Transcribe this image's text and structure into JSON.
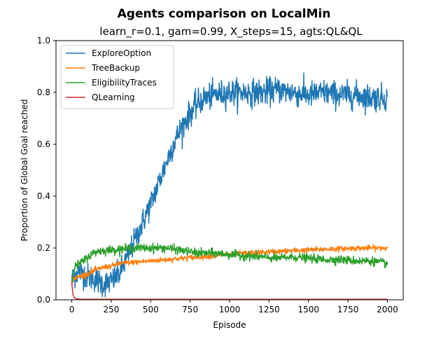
{
  "chart_data": {
    "type": "line",
    "title": "Agents comparison on LocalMin",
    "subtitle": "learn_r=0.1, gam=0.99, X_steps=15, agts:QL&QL",
    "xlabel": "Episode",
    "ylabel": "Proportion of Global Goal reached",
    "xlim": [
      -100,
      2100
    ],
    "ylim": [
      0,
      1.0
    ],
    "xticks": [
      0,
      250,
      500,
      750,
      1000,
      1250,
      1500,
      1750,
      2000
    ],
    "yticks": [
      0.0,
      0.2,
      0.4,
      0.6,
      0.8,
      1.0
    ],
    "grid": false,
    "legend_position": "top-left",
    "series": [
      {
        "name": "ExploreOption",
        "color": "#1f77b4",
        "noise": 0.025,
        "x": [
          0,
          10,
          25,
          50,
          75,
          100,
          150,
          200,
          250,
          300,
          350,
          400,
          450,
          500,
          550,
          600,
          650,
          700,
          750,
          800,
          850,
          900,
          1000,
          1100,
          1200,
          1300,
          1400,
          1500,
          1600,
          1700,
          1800,
          1900,
          2000
        ],
        "y": [
          0.07,
          0.09,
          0.1,
          0.11,
          0.1,
          0.09,
          0.08,
          0.06,
          0.07,
          0.1,
          0.16,
          0.23,
          0.3,
          0.37,
          0.45,
          0.53,
          0.61,
          0.67,
          0.72,
          0.76,
          0.78,
          0.79,
          0.8,
          0.8,
          0.8,
          0.81,
          0.8,
          0.79,
          0.8,
          0.79,
          0.79,
          0.78,
          0.78
        ]
      },
      {
        "name": "TreeBackup",
        "color": "#ff7f0e",
        "noise": 0.005,
        "x": [
          0,
          10,
          25,
          50,
          100,
          150,
          200,
          250,
          300,
          400,
          500,
          600,
          700,
          800,
          900,
          1000,
          1100,
          1200,
          1300,
          1400,
          1500,
          1600,
          1700,
          1800,
          1900,
          2000
        ],
        "y": [
          0.07,
          0.08,
          0.085,
          0.09,
          0.1,
          0.115,
          0.125,
          0.13,
          0.14,
          0.145,
          0.15,
          0.155,
          0.16,
          0.165,
          0.17,
          0.175,
          0.18,
          0.183,
          0.186,
          0.19,
          0.192,
          0.195,
          0.197,
          0.199,
          0.2,
          0.2
        ]
      },
      {
        "name": "EligibilityTraces",
        "color": "#2ca02c",
        "noise": 0.008,
        "x": [
          0,
          10,
          25,
          50,
          75,
          100,
          150,
          200,
          300,
          400,
          500,
          600,
          700,
          800,
          900,
          1000,
          1100,
          1200,
          1300,
          1400,
          1500,
          1600,
          1700,
          1800,
          1900,
          2000
        ],
        "y": [
          0.07,
          0.11,
          0.13,
          0.14,
          0.15,
          0.165,
          0.185,
          0.19,
          0.195,
          0.2,
          0.2,
          0.2,
          0.19,
          0.18,
          0.18,
          0.175,
          0.17,
          0.165,
          0.16,
          0.165,
          0.16,
          0.155,
          0.155,
          0.15,
          0.15,
          0.14
        ]
      },
      {
        "name": "QLearning",
        "color": "#d62728",
        "noise": 0.0,
        "x": [
          0,
          3,
          8,
          15,
          30,
          60,
          2000
        ],
        "y": [
          0.07,
          0.045,
          0.02,
          0.008,
          0.004,
          0.002,
          0.002
        ]
      }
    ]
  }
}
